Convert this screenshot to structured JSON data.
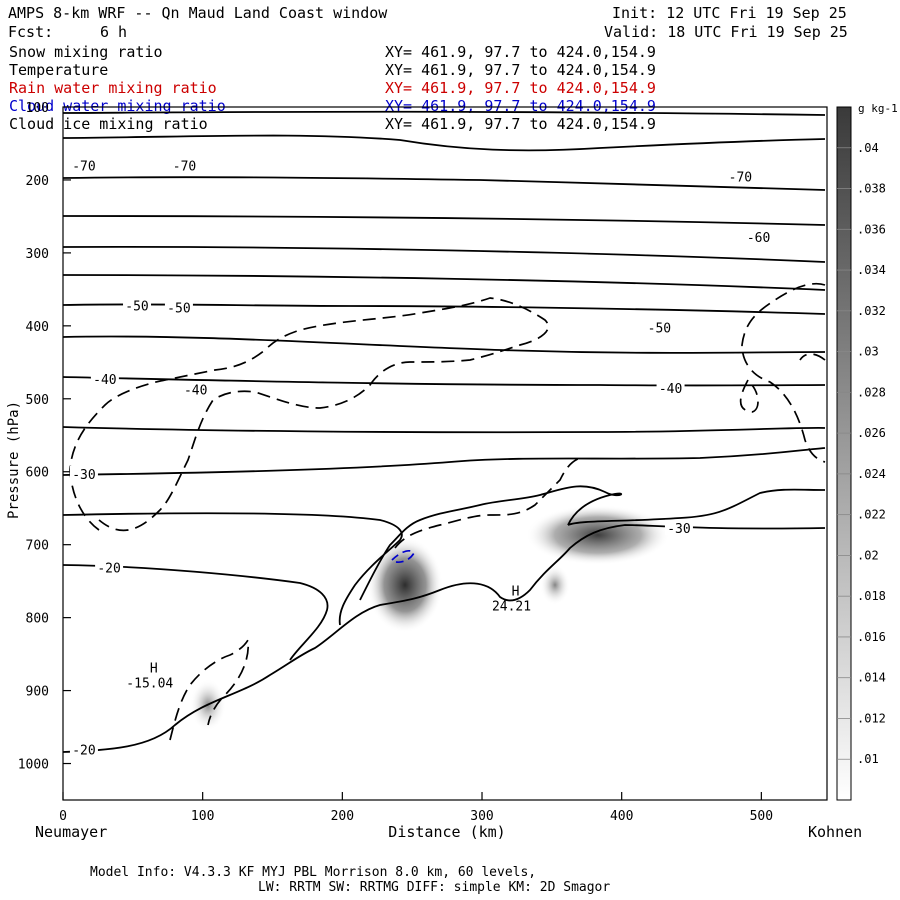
{
  "header": {
    "title": "AMPS 8-km WRF -- Qn Maud Land Coast window",
    "fcst_label": "Fcst:",
    "fcst_value": "6 h",
    "init": "Init: 12 UTC Fri 19 Sep 25",
    "valid": "Valid: 18 UTC Fri 19 Sep 25"
  },
  "fields": [
    {
      "name": "Snow mixing ratio",
      "xy": "XY= 461.9, 97.7 to 424.0,154.9",
      "color": "#000000"
    },
    {
      "name": "Temperature",
      "xy": "XY= 461.9, 97.7 to 424.0,154.9",
      "color": "#000000"
    },
    {
      "name": "Rain water mixing ratio",
      "xy": "XY= 461.9, 97.7 to 424.0,154.9",
      "color": "#cc0000"
    },
    {
      "name": "Cloud water mixing ratio",
      "xy": "XY= 461.9, 97.7 to 424.0,154.9",
      "color": "#0000cc"
    },
    {
      "name": "Cloud ice mixing ratio",
      "xy": "XY= 461.9, 97.7 to 424.0,154.9",
      "color": "#000000"
    }
  ],
  "footer": {
    "line1": "Model Info: V4.3.3   KF      MYJ PBL  Morrison             8.0 km,  60 levels,",
    "line2": "LW: RRTM SW: RRTMG   DIFF: simple KM: 2D Smagor"
  },
  "chart_data": {
    "type": "contour",
    "xlabel": "Distance (km)",
    "ylabel": "Pressure (hPa)",
    "xlim": [
      0,
      547
    ],
    "ylim": [
      1050,
      100
    ],
    "x_ticks": [
      0,
      100,
      200,
      300,
      400,
      500
    ],
    "y_ticks": [
      100,
      200,
      300,
      400,
      500,
      600,
      700,
      800,
      900,
      1000
    ],
    "left_endpoint": "Neumayer",
    "right_endpoint": "Kohnen",
    "temperature_contour_labels": [
      {
        "label": "-70",
        "x": 15,
        "p": 180
      },
      {
        "label": "-70",
        "x": 87,
        "p": 180
      },
      {
        "label": "-70",
        "x": 485,
        "p": 195
      },
      {
        "label": "-60",
        "x": 498,
        "p": 278
      },
      {
        "label": "-50",
        "x": 53,
        "p": 372
      },
      {
        "label": "-50",
        "x": 83,
        "p": 375
      },
      {
        "label": "-50",
        "x": 427,
        "p": 402
      },
      {
        "label": "-40",
        "x": 30,
        "p": 473
      },
      {
        "label": "-40",
        "x": 95,
        "p": 487
      },
      {
        "label": "-40",
        "x": 435,
        "p": 485
      },
      {
        "label": "-30",
        "x": 15,
        "p": 603
      },
      {
        "label": "-30",
        "x": 441,
        "p": 677
      },
      {
        "label": "-20",
        "x": 33,
        "p": 731
      },
      {
        "label": "-20",
        "x": 15,
        "p": 981
      }
    ],
    "extrema": [
      {
        "label": "H",
        "value": "-15.04",
        "x": 65,
        "p": 875
      },
      {
        "label": "H",
        "value": "24.21",
        "x": 324,
        "p": 770
      }
    ],
    "shading": {
      "units": "g kg-1",
      "levels": [
        ".01",
        ".012",
        ".014",
        ".016",
        ".018",
        ".02",
        ".022",
        ".024",
        ".026",
        ".028",
        ".03",
        ".032",
        ".034",
        ".036",
        ".038",
        ".04"
      ]
    }
  }
}
